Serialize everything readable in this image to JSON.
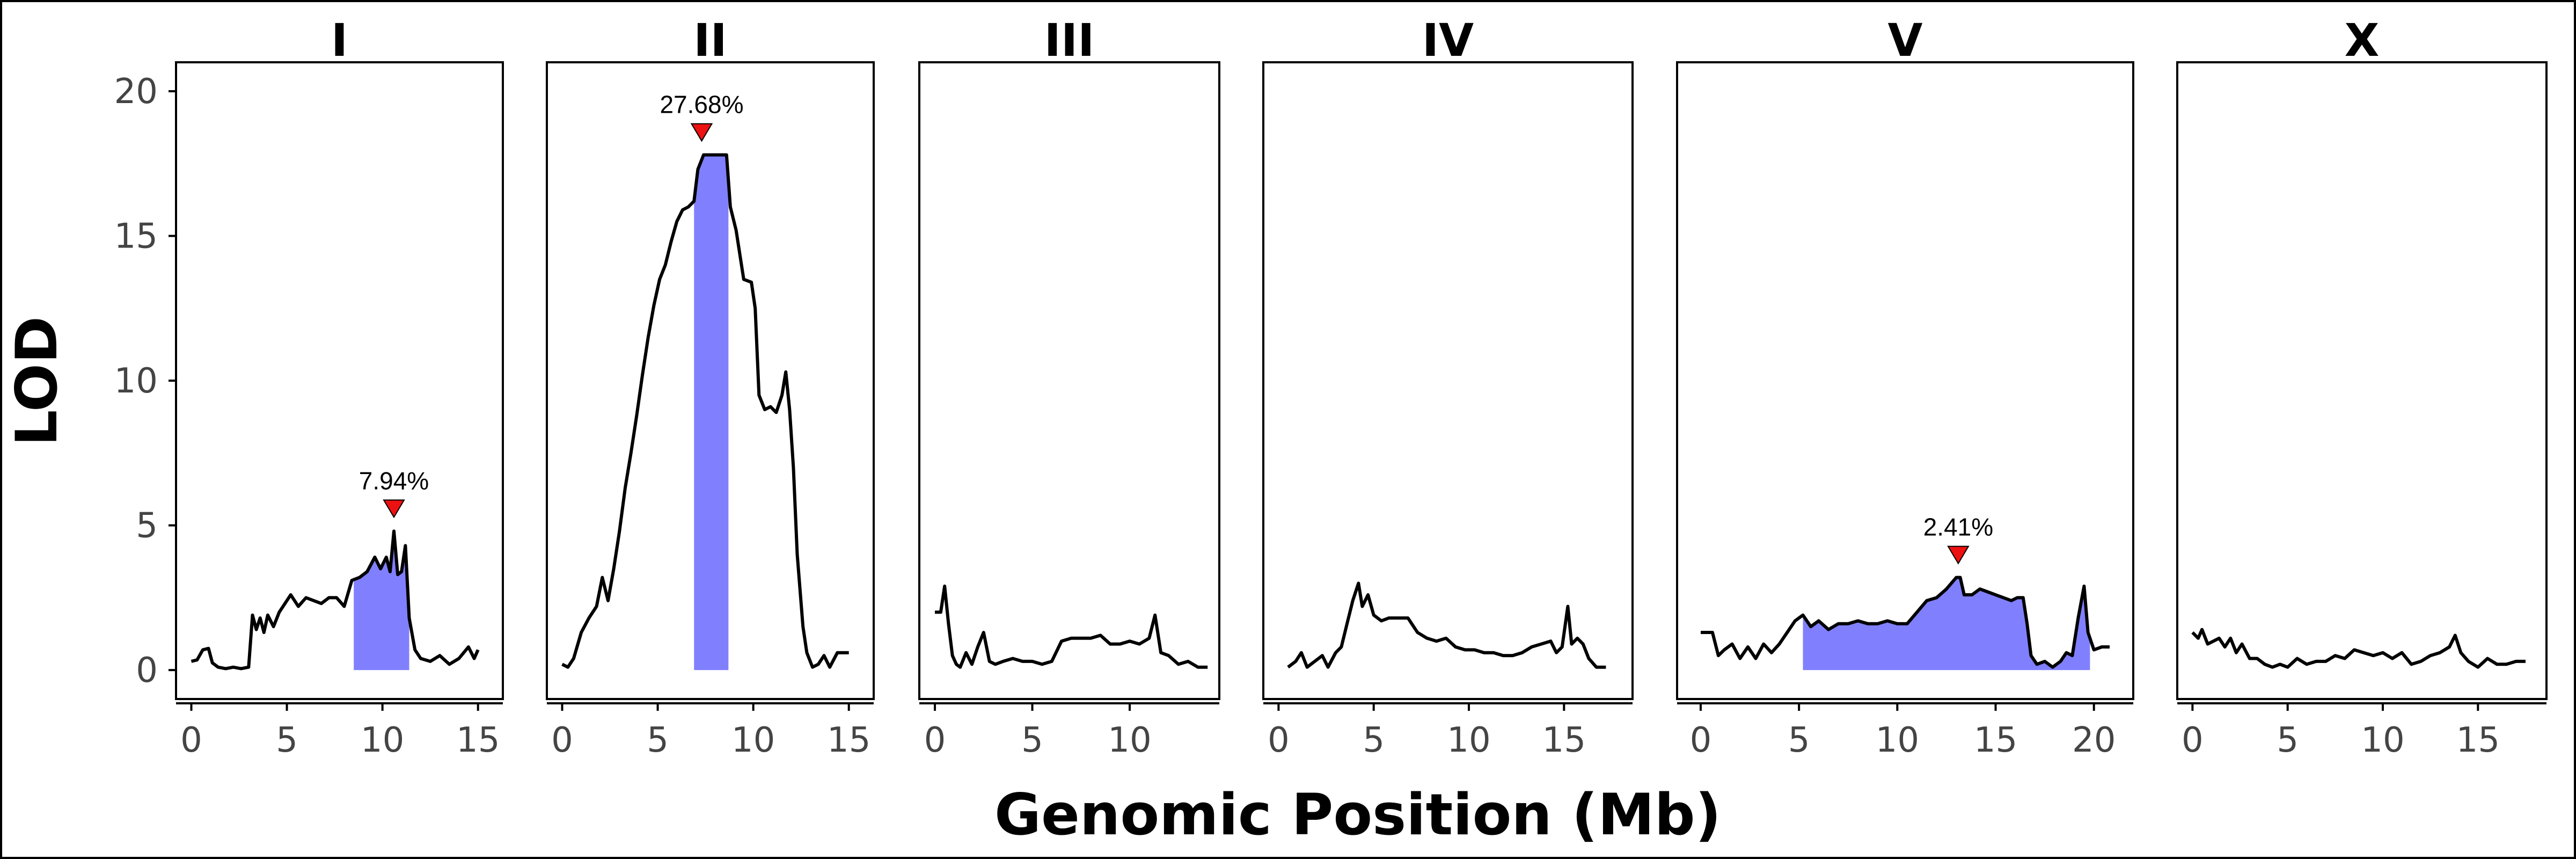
{
  "chart_data": {
    "type": "line",
    "xlabel": "Genomic Position (Mb)",
    "ylabel": "LOD",
    "ylim": [
      0,
      20
    ],
    "yticks": [
      0,
      5,
      10,
      15,
      20
    ],
    "colors": {
      "line": "#000000",
      "interval": "#8080ff",
      "peak_marker": "#ee1111",
      "frame": "#000000"
    },
    "panels": [
      {
        "name": "I",
        "xlim": [
          -0.8,
          16.3
        ],
        "xticks": [
          0,
          5,
          10,
          15
        ],
        "interval": [
          8.5,
          11.4
        ],
        "peak": {
          "x": 10.6,
          "lod": 4.8,
          "label": "7.94%"
        },
        "points": [
          [
            0,
            0.3
          ],
          [
            0.3,
            0.35
          ],
          [
            0.6,
            0.7
          ],
          [
            0.9,
            0.75
          ],
          [
            1.1,
            0.25
          ],
          [
            1.4,
            0.1
          ],
          [
            1.8,
            0.05
          ],
          [
            2.2,
            0.1
          ],
          [
            2.6,
            0.05
          ],
          [
            3.0,
            0.1
          ],
          [
            3.2,
            1.9
          ],
          [
            3.4,
            1.4
          ],
          [
            3.6,
            1.8
          ],
          [
            3.8,
            1.3
          ],
          [
            4.0,
            1.9
          ],
          [
            4.3,
            1.5
          ],
          [
            4.6,
            2.0
          ],
          [
            4.9,
            2.3
          ],
          [
            5.2,
            2.6
          ],
          [
            5.6,
            2.2
          ],
          [
            6.0,
            2.5
          ],
          [
            6.4,
            2.4
          ],
          [
            6.8,
            2.3
          ],
          [
            7.2,
            2.5
          ],
          [
            7.6,
            2.5
          ],
          [
            8.0,
            2.2
          ],
          [
            8.4,
            3.1
          ],
          [
            8.8,
            3.2
          ],
          [
            9.2,
            3.4
          ],
          [
            9.6,
            3.9
          ],
          [
            9.9,
            3.5
          ],
          [
            10.2,
            3.9
          ],
          [
            10.4,
            3.4
          ],
          [
            10.6,
            4.8
          ],
          [
            10.8,
            3.3
          ],
          [
            11.0,
            3.4
          ],
          [
            11.2,
            4.3
          ],
          [
            11.4,
            1.8
          ],
          [
            11.7,
            0.7
          ],
          [
            12.0,
            0.4
          ],
          [
            12.5,
            0.3
          ],
          [
            13.0,
            0.5
          ],
          [
            13.5,
            0.2
          ],
          [
            14.0,
            0.4
          ],
          [
            14.5,
            0.8
          ],
          [
            14.8,
            0.4
          ],
          [
            15.0,
            0.7
          ]
        ]
      },
      {
        "name": "II",
        "xlim": [
          -0.8,
          16.3
        ],
        "xticks": [
          0,
          5,
          10,
          15
        ],
        "interval": [
          6.9,
          8.7
        ],
        "peak": {
          "x": 7.3,
          "lod": 17.8,
          "label": "27.68%"
        },
        "points": [
          [
            0,
            0.2
          ],
          [
            0.3,
            0.1
          ],
          [
            0.6,
            0.4
          ],
          [
            1.0,
            1.3
          ],
          [
            1.4,
            1.8
          ],
          [
            1.8,
            2.2
          ],
          [
            2.1,
            3.2
          ],
          [
            2.4,
            2.4
          ],
          [
            2.7,
            3.5
          ],
          [
            3.0,
            4.8
          ],
          [
            3.3,
            6.3
          ],
          [
            3.6,
            7.5
          ],
          [
            3.9,
            8.8
          ],
          [
            4.2,
            10.2
          ],
          [
            4.5,
            11.5
          ],
          [
            4.8,
            12.6
          ],
          [
            5.1,
            13.5
          ],
          [
            5.4,
            14.0
          ],
          [
            5.7,
            14.8
          ],
          [
            6.0,
            15.5
          ],
          [
            6.3,
            15.9
          ],
          [
            6.6,
            16.0
          ],
          [
            6.9,
            16.2
          ],
          [
            7.1,
            17.3
          ],
          [
            7.4,
            17.8
          ],
          [
            7.8,
            17.8
          ],
          [
            8.2,
            17.8
          ],
          [
            8.6,
            17.8
          ],
          [
            8.8,
            16.0
          ],
          [
            9.1,
            15.2
          ],
          [
            9.5,
            13.5
          ],
          [
            9.9,
            13.4
          ],
          [
            10.1,
            12.5
          ],
          [
            10.3,
            9.5
          ],
          [
            10.6,
            9.0
          ],
          [
            10.9,
            9.1
          ],
          [
            11.2,
            8.9
          ],
          [
            11.5,
            9.5
          ],
          [
            11.7,
            10.3
          ],
          [
            11.9,
            9.0
          ],
          [
            12.1,
            7.0
          ],
          [
            12.3,
            4.0
          ],
          [
            12.6,
            1.5
          ],
          [
            12.8,
            0.6
          ],
          [
            13.1,
            0.1
          ],
          [
            13.4,
            0.2
          ],
          [
            13.7,
            0.5
          ],
          [
            14.0,
            0.1
          ],
          [
            14.4,
            0.6
          ],
          [
            14.8,
            0.6
          ],
          [
            15.0,
            0.6
          ]
        ]
      },
      {
        "name": "III",
        "xlim": [
          -0.8,
          14.6
        ],
        "xticks": [
          0,
          5,
          10
        ],
        "interval": null,
        "peak": null,
        "points": [
          [
            0,
            2.0
          ],
          [
            0.3,
            2.0
          ],
          [
            0.5,
            2.9
          ],
          [
            0.7,
            1.6
          ],
          [
            0.9,
            0.5
          ],
          [
            1.1,
            0.2
          ],
          [
            1.3,
            0.1
          ],
          [
            1.6,
            0.6
          ],
          [
            1.9,
            0.2
          ],
          [
            2.2,
            0.8
          ],
          [
            2.5,
            1.3
          ],
          [
            2.8,
            0.3
          ],
          [
            3.1,
            0.2
          ],
          [
            3.5,
            0.3
          ],
          [
            4.0,
            0.4
          ],
          [
            4.5,
            0.3
          ],
          [
            5.0,
            0.3
          ],
          [
            5.5,
            0.2
          ],
          [
            6.0,
            0.3
          ],
          [
            6.5,
            1.0
          ],
          [
            7.0,
            1.1
          ],
          [
            7.5,
            1.1
          ],
          [
            8.0,
            1.1
          ],
          [
            8.5,
            1.2
          ],
          [
            9.0,
            0.9
          ],
          [
            9.5,
            0.9
          ],
          [
            10.0,
            1.0
          ],
          [
            10.5,
            0.9
          ],
          [
            11.0,
            1.1
          ],
          [
            11.3,
            1.9
          ],
          [
            11.6,
            0.6
          ],
          [
            12.0,
            0.5
          ],
          [
            12.5,
            0.2
          ],
          [
            13.0,
            0.3
          ],
          [
            13.5,
            0.1
          ],
          [
            14.0,
            0.1
          ]
        ]
      },
      {
        "name": "IV",
        "xlim": [
          -0.8,
          18.6
        ],
        "xticks": [
          0,
          5,
          10,
          15
        ],
        "interval": null,
        "peak": null,
        "points": [
          [
            0.5,
            0.1
          ],
          [
            0.9,
            0.3
          ],
          [
            1.2,
            0.6
          ],
          [
            1.5,
            0.1
          ],
          [
            1.9,
            0.3
          ],
          [
            2.3,
            0.5
          ],
          [
            2.6,
            0.1
          ],
          [
            3.0,
            0.6
          ],
          [
            3.3,
            0.8
          ],
          [
            3.6,
            1.6
          ],
          [
            3.9,
            2.4
          ],
          [
            4.2,
            3.0
          ],
          [
            4.4,
            2.2
          ],
          [
            4.7,
            2.6
          ],
          [
            5.0,
            1.9
          ],
          [
            5.4,
            1.7
          ],
          [
            5.8,
            1.8
          ],
          [
            6.3,
            1.8
          ],
          [
            6.8,
            1.8
          ],
          [
            7.3,
            1.3
          ],
          [
            7.8,
            1.1
          ],
          [
            8.3,
            1.0
          ],
          [
            8.8,
            1.1
          ],
          [
            9.3,
            0.8
          ],
          [
            9.8,
            0.7
          ],
          [
            10.3,
            0.7
          ],
          [
            10.8,
            0.6
          ],
          [
            11.3,
            0.6
          ],
          [
            11.8,
            0.5
          ],
          [
            12.3,
            0.5
          ],
          [
            12.8,
            0.6
          ],
          [
            13.3,
            0.8
          ],
          [
            13.8,
            0.9
          ],
          [
            14.3,
            1.0
          ],
          [
            14.6,
            0.6
          ],
          [
            14.9,
            0.8
          ],
          [
            15.2,
            2.2
          ],
          [
            15.4,
            0.9
          ],
          [
            15.7,
            1.1
          ],
          [
            16.0,
            0.9
          ],
          [
            16.3,
            0.4
          ],
          [
            16.7,
            0.1
          ],
          [
            17.2,
            0.1
          ]
        ]
      },
      {
        "name": "V",
        "xlim": [
          -1.2,
          22.0
        ],
        "xticks": [
          0,
          5,
          10,
          15,
          20
        ],
        "interval": [
          5.2,
          19.8
        ],
        "peak": {
          "x": 13.1,
          "lod": 3.2,
          "label": "2.41%"
        },
        "points": [
          [
            0,
            1.3
          ],
          [
            0.6,
            1.3
          ],
          [
            0.9,
            0.5
          ],
          [
            1.2,
            0.7
          ],
          [
            1.6,
            0.9
          ],
          [
            2.0,
            0.4
          ],
          [
            2.4,
            0.8
          ],
          [
            2.8,
            0.4
          ],
          [
            3.2,
            0.9
          ],
          [
            3.6,
            0.6
          ],
          [
            4.0,
            0.9
          ],
          [
            4.4,
            1.3
          ],
          [
            4.8,
            1.7
          ],
          [
            5.2,
            1.9
          ],
          [
            5.6,
            1.5
          ],
          [
            6.0,
            1.7
          ],
          [
            6.5,
            1.4
          ],
          [
            7.0,
            1.6
          ],
          [
            7.5,
            1.6
          ],
          [
            8.0,
            1.7
          ],
          [
            8.5,
            1.6
          ],
          [
            9.0,
            1.6
          ],
          [
            9.5,
            1.7
          ],
          [
            10.0,
            1.6
          ],
          [
            10.5,
            1.6
          ],
          [
            11.0,
            2.0
          ],
          [
            11.5,
            2.4
          ],
          [
            12.0,
            2.5
          ],
          [
            12.5,
            2.8
          ],
          [
            13.0,
            3.2
          ],
          [
            13.2,
            3.2
          ],
          [
            13.4,
            2.6
          ],
          [
            13.8,
            2.6
          ],
          [
            14.2,
            2.8
          ],
          [
            14.6,
            2.7
          ],
          [
            15.0,
            2.6
          ],
          [
            15.4,
            2.5
          ],
          [
            15.8,
            2.4
          ],
          [
            16.1,
            2.5
          ],
          [
            16.4,
            2.5
          ],
          [
            16.6,
            1.6
          ],
          [
            16.8,
            0.5
          ],
          [
            17.1,
            0.2
          ],
          [
            17.5,
            0.3
          ],
          [
            17.9,
            0.1
          ],
          [
            18.3,
            0.3
          ],
          [
            18.6,
            0.6
          ],
          [
            18.9,
            0.5
          ],
          [
            19.2,
            1.8
          ],
          [
            19.5,
            2.9
          ],
          [
            19.7,
            1.3
          ],
          [
            20.0,
            0.7
          ],
          [
            20.4,
            0.8
          ],
          [
            20.8,
            0.8
          ]
        ]
      },
      {
        "name": "X",
        "xlim": [
          -0.8,
          18.6
        ],
        "xticks": [
          0,
          5,
          10,
          15
        ],
        "interval": null,
        "peak": null,
        "points": [
          [
            0,
            1.3
          ],
          [
            0.3,
            1.1
          ],
          [
            0.5,
            1.4
          ],
          [
            0.8,
            0.9
          ],
          [
            1.1,
            1.0
          ],
          [
            1.4,
            1.1
          ],
          [
            1.7,
            0.8
          ],
          [
            2.0,
            1.1
          ],
          [
            2.3,
            0.6
          ],
          [
            2.6,
            0.9
          ],
          [
            3.0,
            0.4
          ],
          [
            3.4,
            0.4
          ],
          [
            3.8,
            0.2
          ],
          [
            4.2,
            0.1
          ],
          [
            4.6,
            0.2
          ],
          [
            5.0,
            0.1
          ],
          [
            5.5,
            0.4
          ],
          [
            6.0,
            0.2
          ],
          [
            6.5,
            0.3
          ],
          [
            7.0,
            0.3
          ],
          [
            7.5,
            0.5
          ],
          [
            8.0,
            0.4
          ],
          [
            8.5,
            0.7
          ],
          [
            9.0,
            0.6
          ],
          [
            9.5,
            0.5
          ],
          [
            10.0,
            0.6
          ],
          [
            10.5,
            0.4
          ],
          [
            11.0,
            0.6
          ],
          [
            11.5,
            0.2
          ],
          [
            12.0,
            0.3
          ],
          [
            12.5,
            0.5
          ],
          [
            13.0,
            0.6
          ],
          [
            13.5,
            0.8
          ],
          [
            13.8,
            1.2
          ],
          [
            14.1,
            0.6
          ],
          [
            14.5,
            0.3
          ],
          [
            15.0,
            0.1
          ],
          [
            15.5,
            0.4
          ],
          [
            16.0,
            0.2
          ],
          [
            16.5,
            0.2
          ],
          [
            17.0,
            0.3
          ],
          [
            17.5,
            0.3
          ]
        ]
      }
    ]
  }
}
